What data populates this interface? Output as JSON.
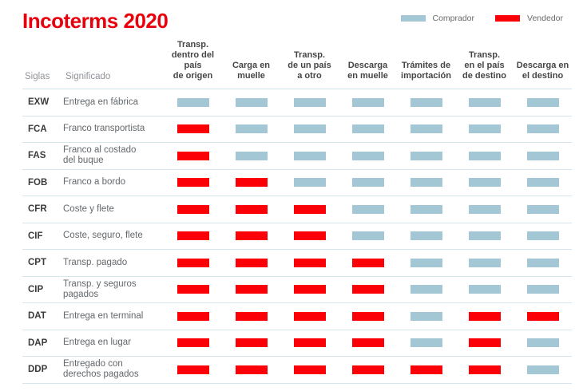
{
  "title": "Incoterms 2020",
  "colors": {
    "title": "#e8000c",
    "comprador": "#a3c7d4",
    "vendedor": "#fb0007",
    "separator": "#cfe3ec"
  },
  "legend": {
    "comprador_label": "Comprador",
    "vendedor_label": "Vendedor"
  },
  "table": {
    "left_headers": {
      "siglas": "Siglas",
      "significado": "Significado"
    },
    "col_headers": [
      "Transp.\ndentro del país\nde origen",
      "Carga en\nmuelle",
      "Transp.\nde un país\na otro",
      "Descarga\nen muelle",
      "Trámites de\nimportación",
      "Transp.\nen el país\nde destino",
      "Descarga en\nel destino"
    ],
    "rows": [
      {
        "sigla": "EXW",
        "significado": "Entrega en fábrica",
        "cells": [
          "comprador",
          "comprador",
          "comprador",
          "comprador",
          "comprador",
          "comprador",
          "comprador"
        ]
      },
      {
        "sigla": "FCA",
        "significado": "Franco transportista",
        "cells": [
          "vendedor",
          "comprador",
          "comprador",
          "comprador",
          "comprador",
          "comprador",
          "comprador"
        ]
      },
      {
        "sigla": "FAS",
        "significado": "Franco al costado\ndel buque",
        "cells": [
          "vendedor",
          "comprador",
          "comprador",
          "comprador",
          "comprador",
          "comprador",
          "comprador"
        ]
      },
      {
        "sigla": "FOB",
        "significado": "Franco a bordo",
        "cells": [
          "vendedor",
          "vendedor",
          "comprador",
          "comprador",
          "comprador",
          "comprador",
          "comprador"
        ]
      },
      {
        "sigla": "CFR",
        "significado": "Coste y flete",
        "cells": [
          "vendedor",
          "vendedor",
          "vendedor",
          "comprador",
          "comprador",
          "comprador",
          "comprador"
        ]
      },
      {
        "sigla": "CIF",
        "significado": "Coste, seguro, flete",
        "cells": [
          "vendedor",
          "vendedor",
          "vendedor",
          "comprador",
          "comprador",
          "comprador",
          "comprador"
        ]
      },
      {
        "sigla": "CPT",
        "significado": "Transp. pagado",
        "cells": [
          "vendedor",
          "vendedor",
          "vendedor",
          "vendedor",
          "comprador",
          "comprador",
          "comprador"
        ]
      },
      {
        "sigla": "CIP",
        "significado": "Transp. y seguros pagados",
        "cells": [
          "vendedor",
          "vendedor",
          "vendedor",
          "vendedor",
          "comprador",
          "comprador",
          "comprador"
        ]
      },
      {
        "sigla": "DAT",
        "significado": "Entrega en terminal",
        "cells": [
          "vendedor",
          "vendedor",
          "vendedor",
          "vendedor",
          "comprador",
          "vendedor",
          "vendedor"
        ]
      },
      {
        "sigla": "DAP",
        "significado": "Entrega en lugar",
        "cells": [
          "vendedor",
          "vendedor",
          "vendedor",
          "vendedor",
          "comprador",
          "vendedor",
          "comprador"
        ]
      },
      {
        "sigla": "DDP",
        "significado": "Entregado con\nderechos pagados",
        "cells": [
          "vendedor",
          "vendedor",
          "vendedor",
          "vendedor",
          "vendedor",
          "vendedor",
          "comprador"
        ]
      }
    ]
  },
  "chart_data": {
    "type": "table",
    "title": "Incoterms 2020",
    "legend_entries": [
      "Comprador",
      "Vendedor"
    ],
    "categories": [
      "Transp. dentro del país de origen",
      "Carga en muelle",
      "Transp. de un país a otro",
      "Descarga en muelle",
      "Trámites de importación",
      "Transp. en el país de destino",
      "Descarga en el destino"
    ],
    "series": [
      {
        "name": "EXW",
        "label": "Entrega en fábrica",
        "values": [
          "Comprador",
          "Comprador",
          "Comprador",
          "Comprador",
          "Comprador",
          "Comprador",
          "Comprador"
        ]
      },
      {
        "name": "FCA",
        "label": "Franco transportista",
        "values": [
          "Vendedor",
          "Comprador",
          "Comprador",
          "Comprador",
          "Comprador",
          "Comprador",
          "Comprador"
        ]
      },
      {
        "name": "FAS",
        "label": "Franco al costado del buque",
        "values": [
          "Vendedor",
          "Comprador",
          "Comprador",
          "Comprador",
          "Comprador",
          "Comprador",
          "Comprador"
        ]
      },
      {
        "name": "FOB",
        "label": "Franco a bordo",
        "values": [
          "Vendedor",
          "Vendedor",
          "Comprador",
          "Comprador",
          "Comprador",
          "Comprador",
          "Comprador"
        ]
      },
      {
        "name": "CFR",
        "label": "Coste y flete",
        "values": [
          "Vendedor",
          "Vendedor",
          "Vendedor",
          "Comprador",
          "Comprador",
          "Comprador",
          "Comprador"
        ]
      },
      {
        "name": "CIF",
        "label": "Coste, seguro, flete",
        "values": [
          "Vendedor",
          "Vendedor",
          "Vendedor",
          "Comprador",
          "Comprador",
          "Comprador",
          "Comprador"
        ]
      },
      {
        "name": "CPT",
        "label": "Transp. pagado",
        "values": [
          "Vendedor",
          "Vendedor",
          "Vendedor",
          "Vendedor",
          "Comprador",
          "Comprador",
          "Comprador"
        ]
      },
      {
        "name": "CIP",
        "label": "Transp. y seguros pagados",
        "values": [
          "Vendedor",
          "Vendedor",
          "Vendedor",
          "Vendedor",
          "Comprador",
          "Comprador",
          "Comprador"
        ]
      },
      {
        "name": "DAT",
        "label": "Entrega en terminal",
        "values": [
          "Vendedor",
          "Vendedor",
          "Vendedor",
          "Vendedor",
          "Comprador",
          "Vendedor",
          "Vendedor"
        ]
      },
      {
        "name": "DAP",
        "label": "Entrega en lugar",
        "values": [
          "Vendedor",
          "Vendedor",
          "Vendedor",
          "Vendedor",
          "Comprador",
          "Vendedor",
          "Comprador"
        ]
      },
      {
        "name": "DDP",
        "label": "Entregado con derechos pagados",
        "values": [
          "Vendedor",
          "Vendedor",
          "Vendedor",
          "Vendedor",
          "Vendedor",
          "Vendedor",
          "Comprador"
        ]
      }
    ]
  }
}
